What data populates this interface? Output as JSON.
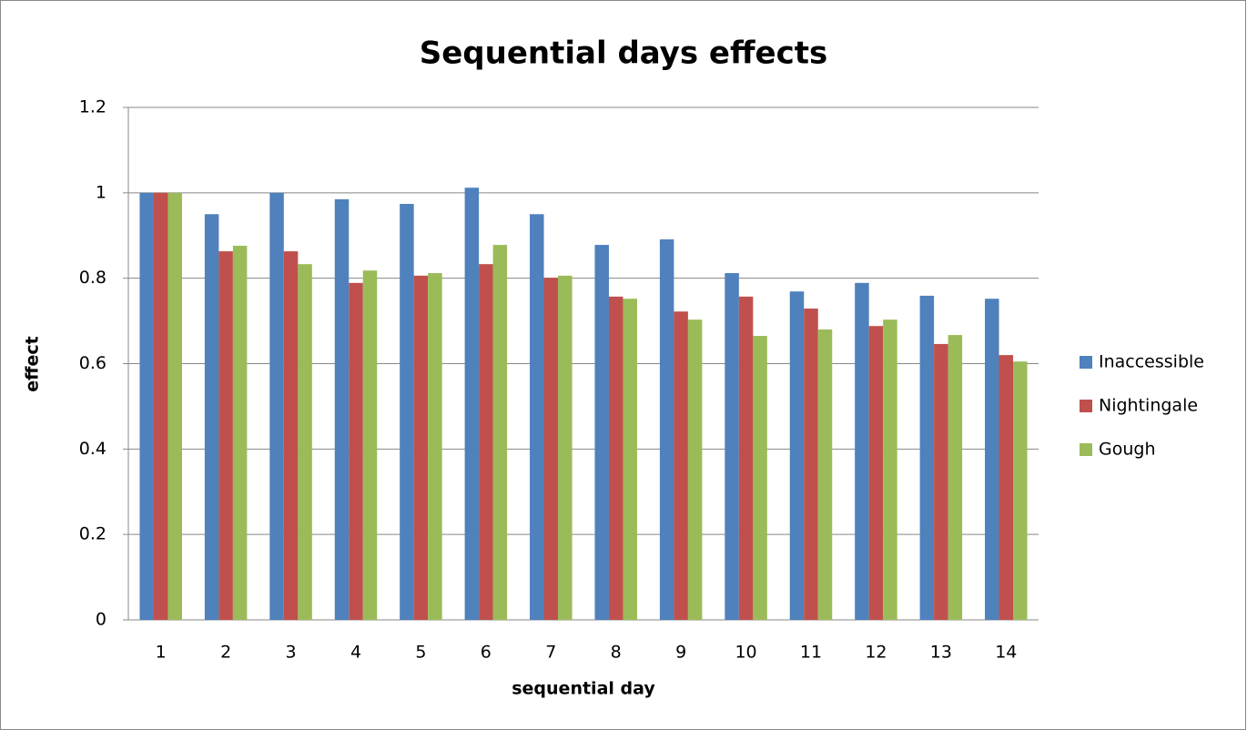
{
  "chart_data": {
    "type": "bar",
    "title": "Sequential days effects",
    "x_label": "sequential day",
    "y_label": "effect",
    "categories": [
      "1",
      "2",
      "3",
      "4",
      "5",
      "6",
      "7",
      "8",
      "9",
      "10",
      "11",
      "12",
      "13",
      "14"
    ],
    "series": [
      {
        "name": "Inaccessible",
        "color": "#4f81bd",
        "values": [
          1.0,
          0.95,
          1.0,
          0.985,
          0.974,
          1.012,
          0.95,
          0.878,
          0.891,
          0.812,
          0.769,
          0.789,
          0.759,
          0.752
        ]
      },
      {
        "name": "Nightingale",
        "color": "#c0504d",
        "values": [
          1.0,
          0.863,
          0.863,
          0.789,
          0.806,
          0.833,
          0.801,
          0.757,
          0.722,
          0.757,
          0.729,
          0.688,
          0.646,
          0.62
        ]
      },
      {
        "name": "Gough",
        "color": "#9bbb59",
        "values": [
          1.0,
          0.876,
          0.833,
          0.818,
          0.812,
          0.878,
          0.806,
          0.752,
          0.703,
          0.665,
          0.68,
          0.703,
          0.667,
          0.605
        ]
      }
    ],
    "ylim": [
      0,
      1.2
    ],
    "yticks": [
      0,
      0.2,
      0.4,
      0.6,
      0.8,
      1,
      1.2
    ],
    "grid": true,
    "legend": "right"
  }
}
